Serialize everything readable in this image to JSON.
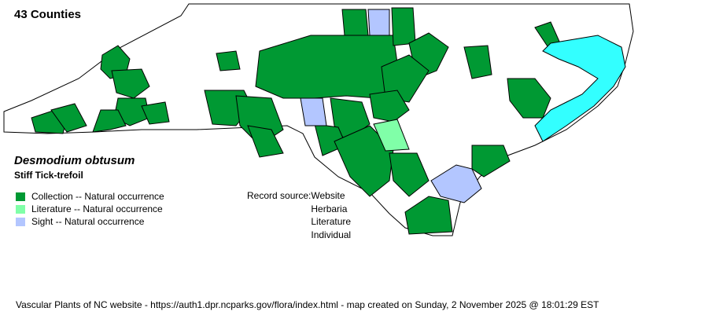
{
  "title": "43 Counties",
  "species": {
    "scientific": "Desmodium obtusum",
    "common": "Stiff Tick-trefoil"
  },
  "legend": [
    {
      "label": "Collection -- Natural occurrence",
      "color": "#009933"
    },
    {
      "label": "Literature -- Natural occurrence",
      "color": "#80ffa8"
    },
    {
      "label": "Sight -- Natural occurrence",
      "color": "#b3c6ff"
    }
  ],
  "record_source": {
    "label": "Record source:",
    "values": [
      "Website",
      "Herbaria",
      "Literature",
      "Individual"
    ]
  },
  "water_color": "#33ffff",
  "footer": "Vascular Plants of NC website - https://auth1.dpr.ncparks.gov/flora/index.html - map created on Sunday, 2 November 2025 @ 18:01:29 EST"
}
